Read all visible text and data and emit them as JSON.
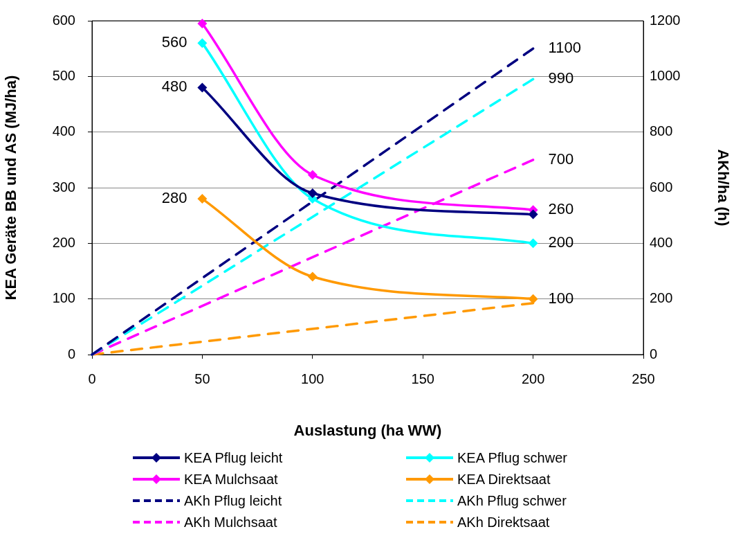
{
  "chart_data": {
    "type": "line",
    "xlabel": "Auslastung (ha WW)",
    "ylabel": "KEA Geräte BB und AS (MJ/ha)",
    "y2label": "AKh/ha (h)",
    "xlim": [
      0,
      250
    ],
    "xticks": [
      0,
      50,
      100,
      150,
      200,
      250
    ],
    "ylim": [
      0,
      600
    ],
    "yticks": [
      0,
      100,
      200,
      300,
      400,
      500,
      600
    ],
    "y2lim": [
      0,
      1200
    ],
    "y2ticks": [
      0,
      200,
      400,
      600,
      800,
      1000,
      1200
    ],
    "grid": "y",
    "legend": "bottom",
    "series": [
      {
        "name": "KEA Pflug leicht",
        "color": "#000080",
        "x": [
          50,
          100,
          200
        ],
        "values": [
          480,
          290,
          252
        ],
        "marker": "diamond",
        "line_style": "solid",
        "value_labels": [
          "480",
          null,
          null
        ]
      },
      {
        "name": "KEA Pflug schwer",
        "color": "#00ffff",
        "x": [
          50,
          100,
          200
        ],
        "values": [
          560,
          280,
          200
        ],
        "marker": "diamond",
        "line_style": "solid",
        "value_labels": [
          "560",
          null,
          "200"
        ]
      },
      {
        "name": "KEA Mulchsaat",
        "color": "#ff00ff",
        "x": [
          50,
          100,
          200
        ],
        "values": [
          595,
          323,
          260
        ],
        "marker": "diamond",
        "line_style": "solid",
        "value_labels": [
          null,
          null,
          "260"
        ]
      },
      {
        "name": "KEA Direktsaat",
        "color": "#ff9900",
        "x": [
          50,
          100,
          200
        ],
        "values": [
          280,
          140,
          100
        ],
        "marker": "diamond",
        "line_style": "solid",
        "value_labels": [
          "280",
          null,
          "100"
        ]
      },
      {
        "name": "AKh Pflug leicht",
        "color": "#000080",
        "axis": "y2",
        "x": [
          0,
          200
        ],
        "values": [
          0,
          1100
        ],
        "marker": "none",
        "line_style": "dashed",
        "value_labels": [
          null,
          "1100"
        ]
      },
      {
        "name": "AKh Pflug schwer",
        "color": "#00ffff",
        "axis": "y2",
        "x": [
          0,
          200
        ],
        "values": [
          0,
          990
        ],
        "marker": "none",
        "line_style": "dashed",
        "value_labels": [
          null,
          "990"
        ]
      },
      {
        "name": "AKh Mulchsaat",
        "color": "#ff00ff",
        "axis": "y2",
        "x": [
          0,
          200
        ],
        "values": [
          0,
          700
        ],
        "marker": "none",
        "line_style": "dashed",
        "value_labels": [
          null,
          "700"
        ]
      },
      {
        "name": "AKh Direktsaat",
        "color": "#ff9900",
        "axis": "y2",
        "x": [
          0,
          200
        ],
        "values": [
          0,
          185
        ],
        "marker": "none",
        "line_style": "dashed",
        "value_labels": [
          null,
          null
        ]
      }
    ]
  }
}
